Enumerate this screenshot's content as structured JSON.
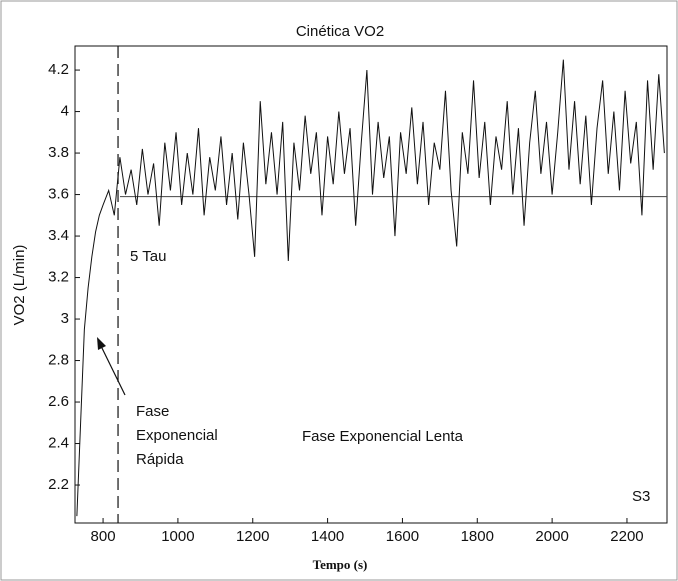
{
  "chart_data": {
    "type": "line",
    "title": "Cinética VO2",
    "xlabel": "Tempo (s)",
    "ylabel": "VO2 (L/min)",
    "annotations": {
      "tau": "5 Tau",
      "fast": [
        "Fase",
        "Exponencial",
        "Rápida"
      ],
      "slow": "Fase Exponencial Lenta",
      "subject": "S3"
    },
    "reference_lines": {
      "y": 3.59,
      "x": 840
    },
    "xlim": [
      725,
      2307
    ],
    "xticks": [
      800,
      1000,
      1200,
      1400,
      1600,
      1800,
      2000,
      2200
    ],
    "ylim": [
      2.017,
      4.316
    ],
    "yticks": [
      2.2,
      2.4,
      2.6,
      2.8,
      3,
      3.2,
      3.4,
      3.6,
      3.8,
      4,
      4.2
    ],
    "x": [
      730,
      740,
      750,
      760,
      770,
      780,
      790,
      800,
      815,
      830,
      845,
      860,
      875,
      890,
      905,
      920,
      935,
      950,
      965,
      980,
      995,
      1010,
      1025,
      1040,
      1055,
      1070,
      1085,
      1100,
      1115,
      1130,
      1145,
      1160,
      1175,
      1190,
      1205,
      1220,
      1235,
      1250,
      1265,
      1280,
      1295,
      1310,
      1325,
      1340,
      1355,
      1370,
      1385,
      1400,
      1415,
      1430,
      1445,
      1460,
      1475,
      1490,
      1505,
      1520,
      1535,
      1550,
      1565,
      1580,
      1595,
      1610,
      1625,
      1640,
      1655,
      1670,
      1685,
      1700,
      1715,
      1730,
      1745,
      1760,
      1775,
      1790,
      1805,
      1820,
      1835,
      1850,
      1865,
      1880,
      1895,
      1910,
      1925,
      1940,
      1955,
      1970,
      1985,
      2000,
      2015,
      2030,
      2045,
      2060,
      2075,
      2090,
      2105,
      2120,
      2135,
      2150,
      2165,
      2180,
      2195,
      2210,
      2225,
      2240,
      2255,
      2270,
      2285,
      2300
    ],
    "series": [
      {
        "name": "VO2",
        "color": "#111111",
        "values": [
          2.05,
          2.5,
          2.95,
          3.15,
          3.3,
          3.42,
          3.5,
          3.55,
          3.62,
          3.5,
          3.78,
          3.6,
          3.72,
          3.55,
          3.82,
          3.6,
          3.75,
          3.45,
          3.85,
          3.62,
          3.9,
          3.55,
          3.8,
          3.6,
          3.92,
          3.5,
          3.78,
          3.62,
          3.88,
          3.55,
          3.8,
          3.48,
          3.85,
          3.6,
          3.3,
          4.05,
          3.65,
          3.9,
          3.6,
          3.95,
          3.28,
          3.85,
          3.62,
          3.98,
          3.7,
          3.9,
          3.5,
          3.88,
          3.65,
          4.0,
          3.7,
          3.92,
          3.45,
          3.85,
          4.2,
          3.6,
          3.95,
          3.68,
          3.88,
          3.4,
          3.9,
          3.7,
          4.02,
          3.65,
          3.95,
          3.55,
          3.85,
          3.72,
          4.1,
          3.62,
          3.35,
          3.9,
          3.7,
          4.15,
          3.68,
          3.95,
          3.55,
          3.88,
          3.72,
          4.05,
          3.6,
          3.92,
          3.45,
          3.85,
          4.1,
          3.7,
          3.95,
          3.6,
          3.9,
          4.25,
          3.72,
          4.05,
          3.65,
          3.98,
          3.55,
          3.92,
          4.15,
          3.7,
          4.0,
          3.62,
          4.1,
          3.75,
          3.95,
          3.5,
          4.15,
          3.72,
          4.18,
          3.8
        ]
      }
    ]
  }
}
